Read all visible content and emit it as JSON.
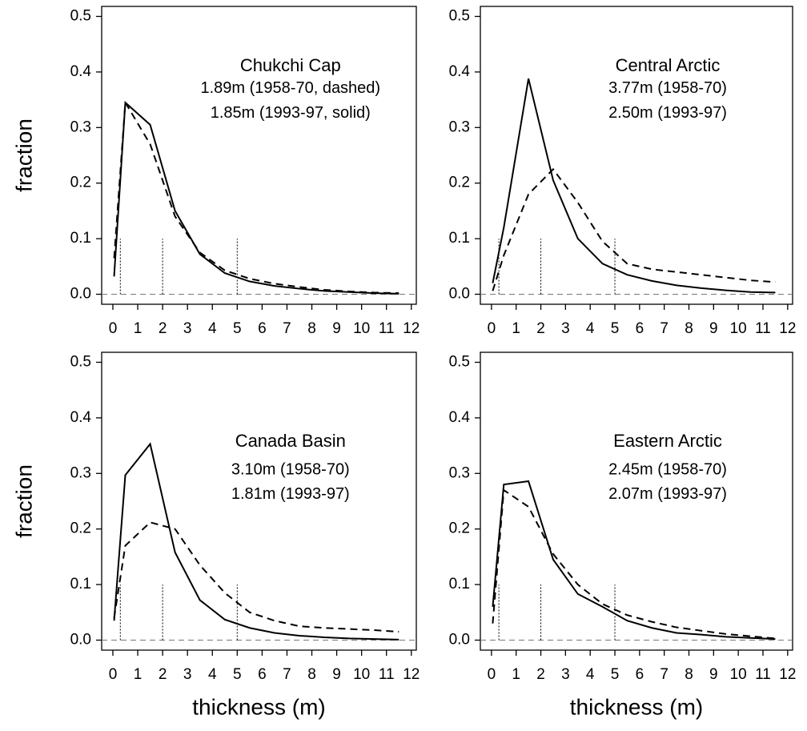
{
  "chart_data": [
    {
      "type": "line",
      "title": "Chukchi Cap",
      "annotations": [
        "1.89m (1958-70, dashed)",
        "1.85m (1993-97, solid)"
      ],
      "ylabel": "fraction",
      "x": [
        0.05,
        0.5,
        1.5,
        2.5,
        3.5,
        4.5,
        5.5,
        6.5,
        7.5,
        8.5,
        9.5,
        10.5,
        11.5
      ],
      "series": [
        {
          "style": "dashed",
          "color": "#000000",
          "values": [
            0.065,
            0.345,
            0.27,
            0.14,
            0.075,
            0.043,
            0.028,
            0.019,
            0.013,
            0.008,
            0.005,
            0.003,
            0.002
          ]
        },
        {
          "style": "solid",
          "color": "#000000",
          "values": [
            0.032,
            0.345,
            0.305,
            0.15,
            0.072,
            0.038,
            0.023,
            0.015,
            0.01,
            0.006,
            0.004,
            0.002,
            0.001
          ]
        }
      ],
      "reference_lines": {
        "x": [
          0.3,
          2,
          5
        ],
        "height": 0.1
      },
      "xlim": [
        -0.45,
        12.2
      ],
      "ylim": [
        -0.018,
        0.518
      ],
      "xticks": [
        0,
        1,
        2,
        3,
        4,
        5,
        6,
        7,
        8,
        9,
        10,
        11,
        12
      ],
      "yticks": [
        {
          "value": 0,
          "label": "0.0"
        },
        0.1,
        0.2,
        0.3,
        0.4,
        0.5
      ]
    },
    {
      "type": "line",
      "title": "Central Arctic",
      "annotations": [
        "3.77m (1958-70)",
        "2.50m (1993-97)"
      ],
      "x": [
        0.05,
        0.5,
        1.5,
        2.5,
        3.5,
        4.5,
        5.5,
        6.5,
        7.5,
        8.5,
        9.5,
        10.5,
        11.5
      ],
      "series": [
        {
          "style": "dashed",
          "color": "#000000",
          "values": [
            0.006,
            0.07,
            0.18,
            0.225,
            0.165,
            0.095,
            0.055,
            0.045,
            0.04,
            0.035,
            0.03,
            0.025,
            0.022
          ]
        },
        {
          "style": "solid",
          "color": "#000000",
          "values": [
            0.02,
            0.12,
            0.388,
            0.205,
            0.1,
            0.055,
            0.035,
            0.024,
            0.016,
            0.011,
            0.007,
            0.004,
            0.003
          ]
        }
      ],
      "reference_lines": {
        "x": [
          0.3,
          2,
          5
        ],
        "height": 0.1
      },
      "xlim": [
        -0.45,
        12.2
      ],
      "ylim": [
        -0.018,
        0.518
      ],
      "xticks": [
        0,
        1,
        2,
        3,
        4,
        5,
        6,
        7,
        8,
        9,
        10,
        11,
        12
      ],
      "yticks": [
        {
          "value": 0,
          "label": "0.0"
        },
        0.1,
        0.2,
        0.3,
        0.4,
        0.5
      ]
    },
    {
      "type": "line",
      "title": "Canada Basin",
      "annotations": [
        "3.10m (1958-70)",
        "1.81m (1993-97)"
      ],
      "ylabel": "fraction",
      "xlabel": "thickness (m)",
      "x": [
        0.05,
        0.5,
        1.5,
        2.5,
        3.5,
        4.5,
        5.5,
        6.5,
        7.5,
        8.5,
        9.5,
        10.5,
        11.5
      ],
      "series": [
        {
          "style": "dashed",
          "color": "#000000",
          "values": [
            0.04,
            0.17,
            0.212,
            0.2,
            0.135,
            0.085,
            0.05,
            0.035,
            0.025,
            0.022,
            0.02,
            0.018,
            0.015
          ]
        },
        {
          "style": "solid",
          "color": "#000000",
          "values": [
            0.035,
            0.297,
            0.353,
            0.158,
            0.072,
            0.037,
            0.022,
            0.013,
            0.008,
            0.005,
            0.003,
            0.002,
            0.001
          ]
        }
      ],
      "reference_lines": {
        "x": [
          0.3,
          2,
          5
        ],
        "height": 0.1
      },
      "xlim": [
        -0.45,
        12.2
      ],
      "ylim": [
        -0.018,
        0.518
      ],
      "xticks": [
        0,
        1,
        2,
        3,
        4,
        5,
        6,
        7,
        8,
        9,
        10,
        11,
        12
      ],
      "yticks": [
        {
          "value": 0,
          "label": "0.0"
        },
        0.1,
        0.2,
        0.3,
        0.4,
        0.5
      ]
    },
    {
      "type": "line",
      "title": "Eastern Arctic",
      "annotations": [
        "2.45m (1958-70)",
        "2.07m (1993-97)"
      ],
      "xlabel": "thickness (m)",
      "x": [
        0.05,
        0.5,
        1.5,
        2.5,
        3.5,
        4.5,
        5.5,
        6.5,
        7.5,
        8.5,
        9.5,
        10.5,
        11.5
      ],
      "series": [
        {
          "style": "dashed",
          "color": "#000000",
          "values": [
            0.03,
            0.27,
            0.24,
            0.155,
            0.1,
            0.065,
            0.045,
            0.033,
            0.023,
            0.017,
            0.011,
            0.007,
            0.003
          ]
        },
        {
          "style": "solid",
          "color": "#000000",
          "values": [
            0.06,
            0.28,
            0.286,
            0.145,
            0.083,
            0.06,
            0.035,
            0.022,
            0.013,
            0.01,
            0.006,
            0.004,
            0.002
          ]
        }
      ],
      "reference_lines": {
        "x": [
          0.3,
          2,
          5
        ],
        "height": 0.1
      },
      "xlim": [
        -0.45,
        12.2
      ],
      "ylim": [
        -0.018,
        0.518
      ],
      "xticks": [
        0,
        1,
        2,
        3,
        4,
        5,
        6,
        7,
        8,
        9,
        10,
        11,
        12
      ],
      "yticks": [
        {
          "value": 0,
          "label": "0.0"
        },
        0.1,
        0.2,
        0.3,
        0.4,
        0.5
      ]
    }
  ]
}
